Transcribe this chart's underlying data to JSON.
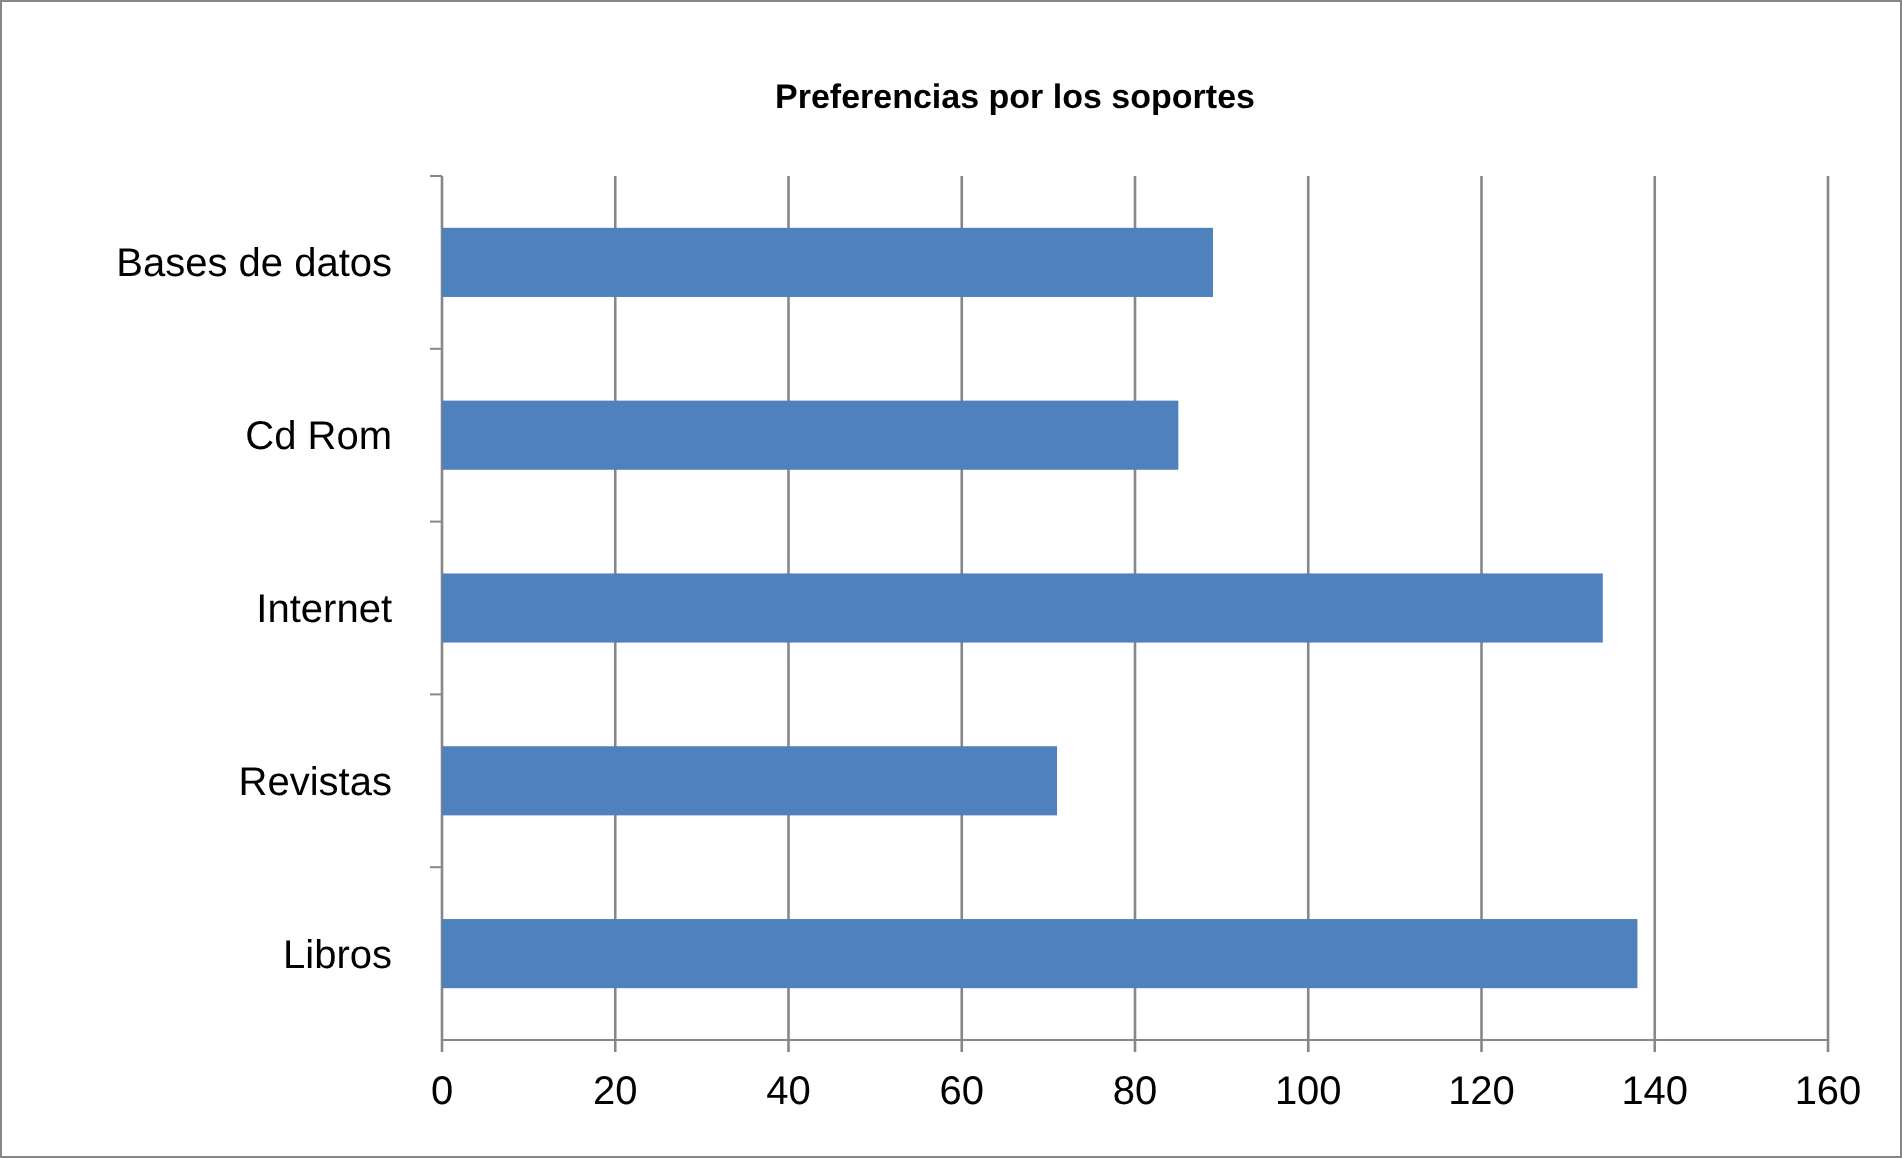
{
  "chart_data": {
    "type": "bar",
    "orientation": "horizontal",
    "title": "Preferencias por los soportes",
    "categories": [
      "Bases de datos",
      "Cd Rom",
      "Internet",
      "Revistas",
      "Libros"
    ],
    "values": [
      89,
      85,
      134,
      71,
      138
    ],
    "color": "#4f81bd",
    "xlim": [
      0,
      160
    ],
    "xticks": [
      0,
      20,
      40,
      60,
      80,
      100,
      120,
      140,
      160
    ],
    "grid": "x"
  }
}
